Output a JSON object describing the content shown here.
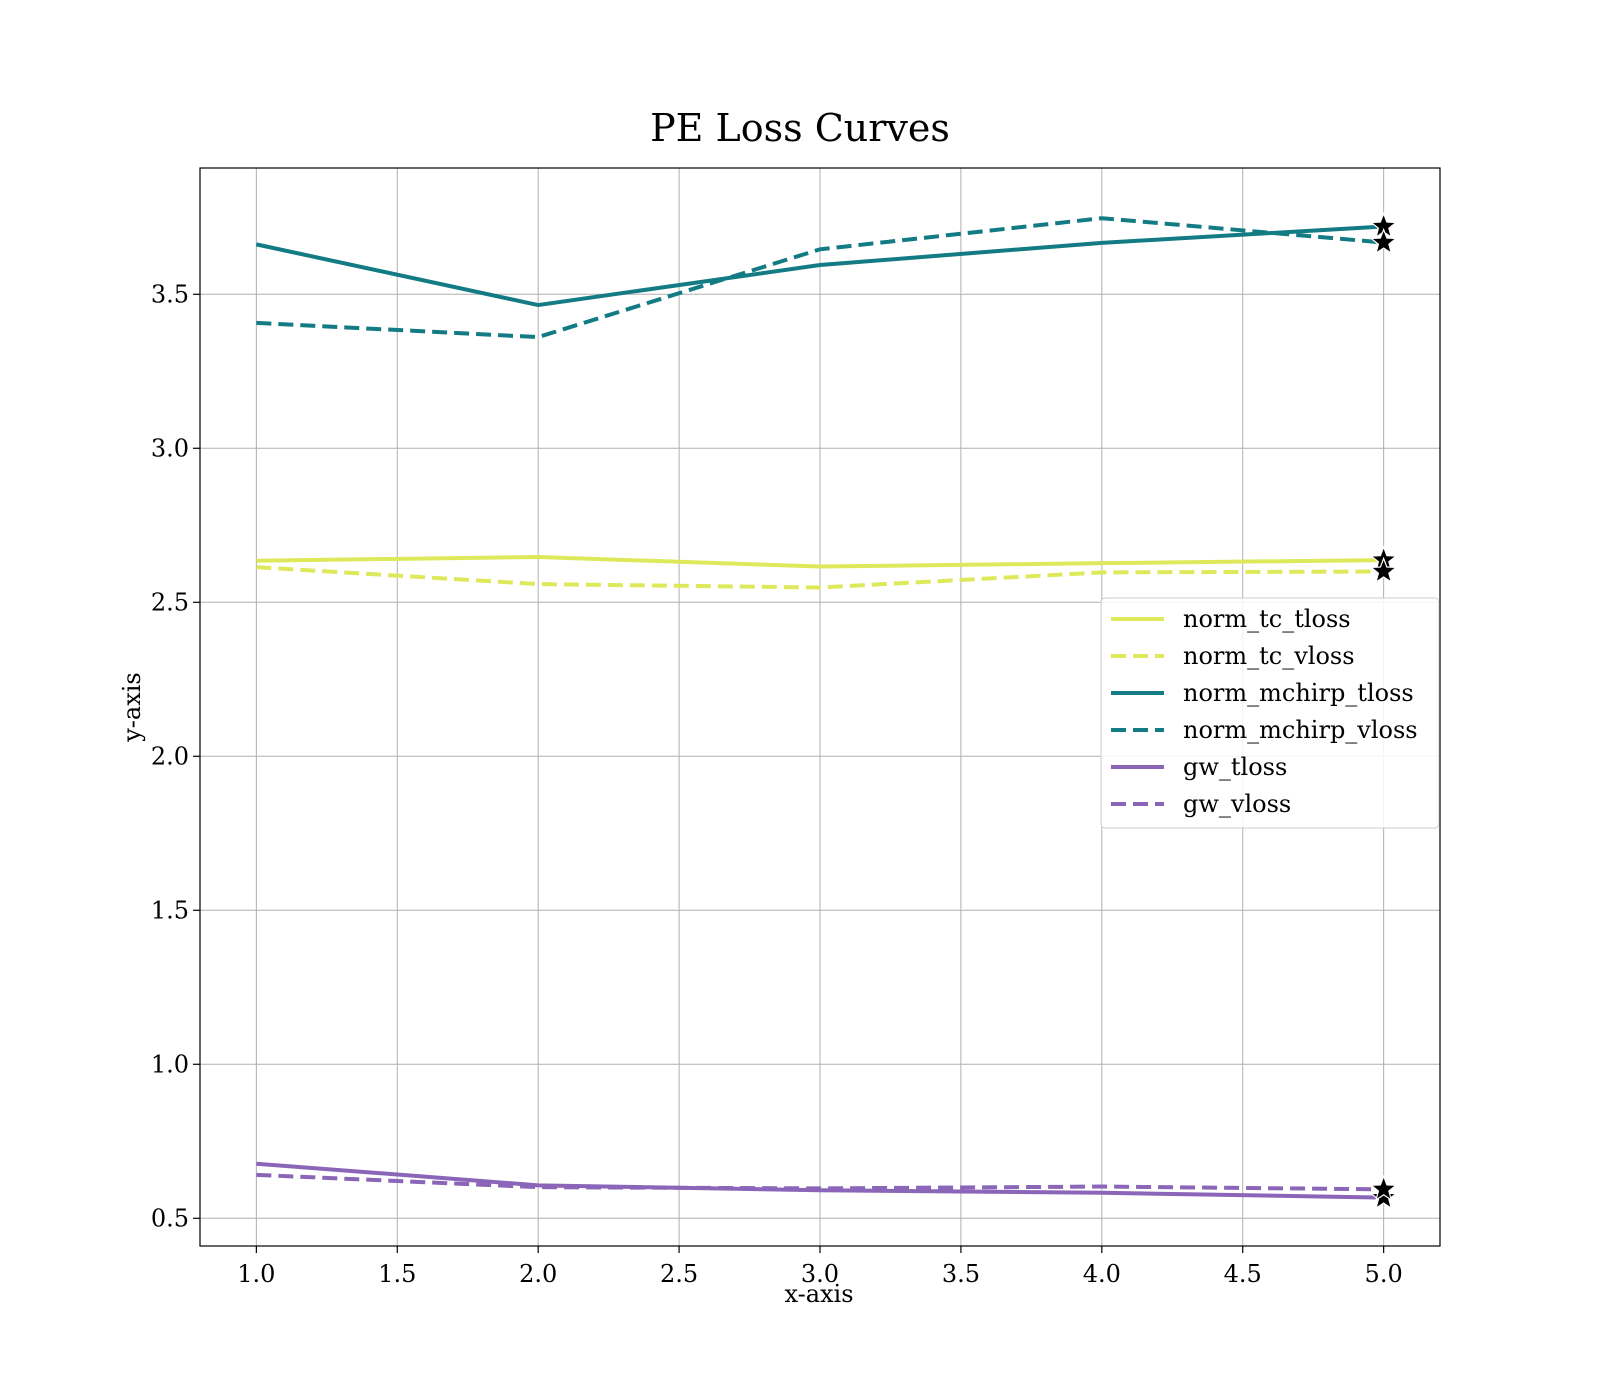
{
  "chart_data": {
    "type": "line",
    "title": "PE Loss Curves",
    "xlabel": "x-axis",
    "ylabel": "y-axis",
    "xlim": [
      0.8,
      5.2
    ],
    "ylim": [
      0.41,
      3.91
    ],
    "xticks": [
      1.0,
      1.5,
      2.0,
      2.5,
      3.0,
      3.5,
      4.0,
      4.5,
      5.0
    ],
    "xtick_labels": [
      "1.0",
      "1.5",
      "2.0",
      "2.5",
      "3.0",
      "3.5",
      "4.0",
      "4.5",
      "5.0"
    ],
    "yticks": [
      0.5,
      1.0,
      1.5,
      2.0,
      2.5,
      3.0,
      3.5
    ],
    "ytick_labels": [
      "0.5",
      "1.0",
      "1.5",
      "2.0",
      "2.5",
      "3.0",
      "3.5"
    ],
    "grid": true,
    "legend_position": "center-right",
    "x": [
      1,
      2,
      3,
      4,
      5
    ],
    "series": [
      {
        "name": "norm_tc_tloss",
        "values": [
          2.635,
          2.647,
          2.616,
          2.627,
          2.637
        ],
        "color": "#dde95a",
        "dash": false
      },
      {
        "name": "norm_tc_vloss",
        "values": [
          2.614,
          2.559,
          2.548,
          2.597,
          2.6
        ],
        "color": "#dde95a",
        "dash": true
      },
      {
        "name": "norm_mchirp_tloss",
        "values": [
          3.662,
          3.465,
          3.595,
          3.667,
          3.72
        ],
        "color": "#127b84",
        "dash": false
      },
      {
        "name": "norm_mchirp_vloss",
        "values": [
          3.407,
          3.361,
          3.646,
          3.747,
          3.668
        ],
        "color": "#127b84",
        "dash": true
      },
      {
        "name": "gw_tloss",
        "values": [
          0.677,
          0.607,
          0.591,
          0.583,
          0.567
        ],
        "color": "#8a65b8",
        "dash": false
      },
      {
        "name": "gw_vloss",
        "values": [
          0.641,
          0.601,
          0.597,
          0.603,
          0.594
        ],
        "color": "#8a65b8",
        "dash": true
      }
    ],
    "final_point_marker": "star"
  }
}
